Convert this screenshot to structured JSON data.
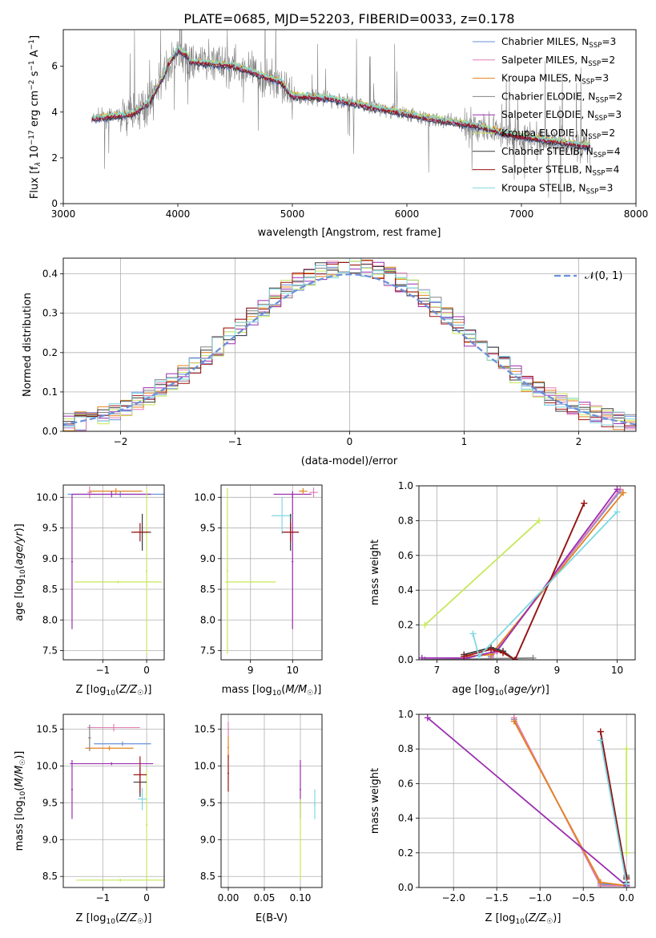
{
  "figure_title": "PLATE=0685, MJD=52203, FIBERID=0033, z=0.178",
  "colors": {
    "Chabrier MILES": "#6a8fd8",
    "Salpeter MILES": "#e07fb3",
    "Kroupa MILES": "#e4821f",
    "Chabrier ELODIE": "#838383",
    "Salpeter ELODIE": "#9b2fb0",
    "Kroupa ELODIE": "#c6e85a",
    "Chabrier STELIB": "#3a3a3a",
    "Salpeter STELIB": "#9e1414",
    "Kroupa STELIB": "#7fd8e2",
    "gaussian": "#6a8fd8"
  },
  "chart_data": [
    {
      "id": "spectrum",
      "type": "line",
      "title": "PLATE=0685, MJD=52203, FIBERID=0033, z=0.178",
      "xlabel": "wavelength [Angstrom, rest frame]",
      "ylabel": "Flux [f_λ 10^-17 erg cm^-2 s^-1 A^-1]",
      "xlim": [
        3000,
        8000
      ],
      "ylim": [
        0,
        7.6
      ],
      "xticks": [
        3000,
        4000,
        5000,
        6000,
        7000,
        8000
      ],
      "yticks": [
        0,
        2,
        4,
        6
      ],
      "grid": false,
      "legend_position": "top-right",
      "legend": [
        {
          "name": "Chabrier MILES",
          "label": "Chabrier MILES, N",
          "sub": "SSP",
          "tail": "=3"
        },
        {
          "name": "Salpeter MILES",
          "label": "Salpeter MILES, N",
          "sub": "SSP",
          "tail": "=2"
        },
        {
          "name": "Kroupa MILES",
          "label": "Kroupa MILES, N",
          "sub": "SSP",
          "tail": "=3"
        },
        {
          "name": "Chabrier ELODIE",
          "label": "Chabrier ELODIE, N",
          "sub": "SSP",
          "tail": "=2"
        },
        {
          "name": "Salpeter ELODIE",
          "label": "Salpeter ELODIE, N",
          "sub": "SSP",
          "tail": "=3"
        },
        {
          "name": "Kroupa ELODIE",
          "label": "Kroupa ELODIE, N",
          "sub": "SSP",
          "tail": "=2"
        },
        {
          "name": "Chabrier STELIB",
          "label": "Chabrier STELIB, N",
          "sub": "SSP",
          "tail": "=4"
        },
        {
          "name": "Salpeter STELIB",
          "label": "Salpeter STELIB, N",
          "sub": "SSP",
          "tail": "=4"
        },
        {
          "name": "Kroupa STELIB",
          "label": "Kroupa STELIB, N",
          "sub": "SSP",
          "tail": "=3"
        }
      ],
      "data_range": [
        3250,
        7600
      ],
      "continuum_anchors": {
        "x": [
          3250,
          3600,
          3750,
          3900,
          4000,
          4100,
          4500,
          4900,
          5000,
          5300,
          5800,
          6200,
          6600,
          6900,
          7300,
          7600
        ],
        "y": [
          3.7,
          3.9,
          4.4,
          5.8,
          6.5,
          6.2,
          6.0,
          5.3,
          4.7,
          4.6,
          4.1,
          3.7,
          3.4,
          3.0,
          2.7,
          2.5
        ]
      }
    },
    {
      "id": "residuals",
      "type": "step",
      "xlabel": "(data-model)/error",
      "ylabel": "Normed distribution",
      "xlim": [
        -2.5,
        2.5
      ],
      "ylim": [
        0,
        0.44
      ],
      "xticks": [
        -2,
        -1,
        0,
        1,
        2
      ],
      "yticks": [
        0.0,
        0.1,
        0.2,
        0.3,
        0.4
      ],
      "grid": true,
      "legend_position": "top-right",
      "reference": {
        "name": "𝒩(0, 1)",
        "mean": 0,
        "std": 1,
        "style": "dashed"
      },
      "bin_width": 0.1
    },
    {
      "id": "age-vs-Z",
      "type": "errorbar",
      "xlabel": "Z [log10(Z/Z☉)]",
      "ylabel": "age [log10(age/yr)]",
      "xlim": [
        -1.9,
        0.4
      ],
      "ylim": [
        7.35,
        10.2
      ],
      "xticks": [
        -1,
        0
      ],
      "yticks": [
        7.5,
        8.0,
        8.5,
        9.0,
        9.5,
        10.0
      ],
      "grid": true,
      "points": [
        {
          "series": "Chabrier MILES",
          "x": -0.6,
          "xerr": 1.2,
          "y": 10.05,
          "yerr": 0.05
        },
        {
          "series": "Salpeter MILES",
          "x": -1.3,
          "xerr": 0.05,
          "y": 10.08,
          "yerr": 0.1
        },
        {
          "series": "Kroupa MILES",
          "x": -0.7,
          "xerr": 0.6,
          "y": 10.1,
          "yerr": 0.05
        },
        {
          "series": "Salpeter ELODIE",
          "x": -0.8,
          "xerr": 0.9,
          "y": 10.05,
          "yerr": 0.05
        },
        {
          "series": "Salpeter ELODIE",
          "x": -1.7,
          "xerr": 0.02,
          "y": 8.95,
          "yerr": 1.1
        },
        {
          "series": "Kroupa ELODIE",
          "x": -0.65,
          "xerr": 1.0,
          "y": 8.62,
          "yerr": 0.02
        },
        {
          "series": "Kroupa ELODIE",
          "x": 0.0,
          "xerr": 0.02,
          "y": 8.8,
          "yerr": 1.35
        },
        {
          "series": "Chabrier STELIB",
          "x": -0.1,
          "xerr": 0.2,
          "y": 9.43,
          "yerr": 0.3
        },
        {
          "series": "Salpeter STELIB",
          "x": -0.15,
          "xerr": 0.2,
          "y": 9.43,
          "yerr": 0.15
        }
      ]
    },
    {
      "id": "age-vs-mass",
      "type": "errorbar",
      "xlabel": "mass [log10(M/M☉)]",
      "xlim": [
        8.3,
        10.7
      ],
      "ylim": [
        7.35,
        10.2
      ],
      "xticks": [
        9,
        10
      ],
      "yticks": [
        7.5,
        8.0,
        8.5,
        9.0,
        9.5,
        10.0
      ],
      "grid": true,
      "points": [
        {
          "series": "Salpeter ELODIE",
          "x": 10.0,
          "xerr": 0.45,
          "y": 10.05,
          "yerr": 0.05
        },
        {
          "series": "Salpeter ELODIE",
          "x": 10.0,
          "xerr": 0.02,
          "y": 8.95,
          "yerr": 1.1
        },
        {
          "series": "Kroupa MILES",
          "x": 10.25,
          "xerr": 0.1,
          "y": 10.1,
          "yerr": 0.05
        },
        {
          "series": "Salpeter MILES",
          "x": 10.5,
          "xerr": 0.1,
          "y": 10.08,
          "yerr": 0.08
        },
        {
          "series": "Kroupa STELIB",
          "x": 9.75,
          "xerr": 0.25,
          "y": 9.7,
          "yerr": 0.3
        },
        {
          "series": "Chabrier STELIB",
          "x": 9.95,
          "xerr": 0.2,
          "y": 9.43,
          "yerr": 0.3
        },
        {
          "series": "Salpeter STELIB",
          "x": 9.95,
          "xerr": 0.2,
          "y": 9.43,
          "yerr": 0.15
        },
        {
          "series": "Kroupa ELODIE",
          "x": 8.45,
          "xerr": 0.02,
          "y": 8.8,
          "yerr": 1.35
        },
        {
          "series": "Kroupa ELODIE",
          "x": 9.0,
          "xerr": 0.6,
          "y": 8.62,
          "yerr": 0.02
        }
      ]
    },
    {
      "id": "weight-vs-age",
      "type": "line",
      "xlabel": "age [log10(age/yr)]",
      "ylabel": "mass weight",
      "xlim": [
        6.7,
        10.3
      ],
      "ylim": [
        0,
        1
      ],
      "xticks": [
        7,
        8,
        9,
        10
      ],
      "yticks": [
        0.0,
        0.2,
        0.4,
        0.6,
        0.8,
        1.0
      ],
      "grid": true,
      "series": [
        {
          "name": "Chabrier MILES",
          "x": [
            7.9,
            10.05
          ],
          "y": [
            0.02,
            0.97
          ]
        },
        {
          "name": "Salpeter MILES",
          "x": [
            7.9,
            10.05
          ],
          "y": [
            0.01,
            0.98
          ]
        },
        {
          "name": "Kroupa MILES",
          "x": [
            7.5,
            7.9,
            10.1
          ],
          "y": [
            0.02,
            0.03,
            0.96
          ]
        },
        {
          "name": "Chabrier ELODIE",
          "x": [
            6.8,
            8.6
          ],
          "y": [
            0.0,
            0.01
          ]
        },
        {
          "name": "Salpeter ELODIE",
          "x": [
            6.75,
            7.5,
            8.0,
            10.0
          ],
          "y": [
            0.01,
            0.01,
            0.05,
            0.98
          ]
        },
        {
          "name": "Kroupa ELODIE",
          "x": [
            6.8,
            8.7
          ],
          "y": [
            0.2,
            0.8
          ]
        },
        {
          "name": "Chabrier STELIB",
          "x": [
            7.45,
            7.9,
            8.1,
            8.3,
            9.45
          ],
          "y": [
            0.03,
            0.07,
            0.05,
            0.0,
            0.9
          ]
        },
        {
          "name": "Salpeter STELIB",
          "x": [
            7.45,
            7.9,
            8.1,
            8.3,
            9.45
          ],
          "y": [
            0.02,
            0.06,
            0.04,
            0.0,
            0.9
          ]
        },
        {
          "name": "Kroupa STELIB",
          "x": [
            7.6,
            7.7,
            10.0
          ],
          "y": [
            0.15,
            0.02,
            0.85
          ]
        }
      ]
    },
    {
      "id": "mass-vs-Z",
      "type": "errorbar",
      "xlabel": "Z [log10(Z/Z☉)]",
      "ylabel": "mass [log10(M/M☉)]",
      "xlim": [
        -1.9,
        0.4
      ],
      "ylim": [
        8.35,
        10.7
      ],
      "xticks": [
        -1,
        0
      ],
      "yticks": [
        8.5,
        9.0,
        9.5,
        10.0,
        10.5
      ],
      "grid": true,
      "points": [
        {
          "series": "Salpeter MILES",
          "x": -0.75,
          "xerr": 0.6,
          "y": 10.52,
          "yerr": 0.05
        },
        {
          "series": "Chabrier MILES",
          "x": -0.55,
          "xerr": 0.65,
          "y": 10.3,
          "yerr": 0.03
        },
        {
          "series": "Kroupa MILES",
          "x": -0.85,
          "xerr": 0.55,
          "y": 10.24,
          "yerr": 0.03
        },
        {
          "series": "Chabrier ELODIE",
          "x": -1.3,
          "xerr": 0.03,
          "y": 10.38,
          "yerr": 0.18
        },
        {
          "series": "Salpeter ELODIE",
          "x": -0.8,
          "xerr": 0.95,
          "y": 10.03,
          "yerr": 0.02
        },
        {
          "series": "Salpeter ELODIE",
          "x": -1.7,
          "xerr": 0.02,
          "y": 9.68,
          "yerr": 0.4
        },
        {
          "series": "Kroupa ELODIE",
          "x": -0.6,
          "xerr": 1.0,
          "y": 8.45,
          "yerr": 0.02
        },
        {
          "series": "Kroupa ELODIE",
          "x": 0.0,
          "xerr": 0.02,
          "y": 9.2,
          "yerr": 0.75
        },
        {
          "series": "Chabrier STELIB",
          "x": -0.15,
          "xerr": 0.15,
          "y": 9.78,
          "yerr": 0.2
        },
        {
          "series": "Salpeter STELIB",
          "x": -0.15,
          "xerr": 0.15,
          "y": 9.88,
          "yerr": 0.25
        },
        {
          "series": "Kroupa STELIB",
          "x": -0.1,
          "xerr": 0.1,
          "y": 9.55,
          "yerr": 0.15
        }
      ]
    },
    {
      "id": "mass-vs-ebv",
      "type": "errorbar",
      "xlabel": "E(B-V)",
      "xlim": [
        -0.01,
        0.13
      ],
      "ylim": [
        8.35,
        10.7
      ],
      "xticks": [
        0.0,
        0.05,
        0.1
      ],
      "yticks": [
        8.5,
        9.0,
        9.5,
        10.0,
        10.5
      ],
      "grid": true,
      "points": [
        {
          "series": "Salpeter MILES",
          "x": 0.0,
          "xerr": 0.001,
          "y": 10.5,
          "yerr": 0.1
        },
        {
          "series": "Kroupa MILES",
          "x": 0.0,
          "xerr": 0.001,
          "y": 10.25,
          "yerr": 0.15
        },
        {
          "series": "Salpeter STELIB",
          "x": 0.0,
          "xerr": 0.001,
          "y": 9.9,
          "yerr": 0.25
        },
        {
          "series": "Salpeter ELODIE",
          "x": 0.1,
          "xerr": 0.001,
          "y": 9.68,
          "yerr": 0.4
        },
        {
          "series": "Kroupa ELODIE",
          "x": 0.1,
          "xerr": 0.001,
          "y": 9.0,
          "yerr": 0.55
        },
        {
          "series": "Kroupa STELIB",
          "x": 0.12,
          "xerr": 0.001,
          "y": 9.48,
          "yerr": 0.2
        }
      ]
    },
    {
      "id": "weight-vs-Z",
      "type": "line",
      "xlabel": "Z [log10(Z/Z☉)]",
      "ylabel": "mass weight",
      "xlim": [
        -2.4,
        0.1
      ],
      "ylim": [
        0,
        1
      ],
      "xticks": [
        -2.0,
        -1.5,
        -1.0,
        -0.5,
        0.0
      ],
      "yticks": [
        0.0,
        0.2,
        0.4,
        0.6,
        0.8,
        1.0
      ],
      "grid": true,
      "series": [
        {
          "name": "Chabrier MILES",
          "x": [
            -1.3,
            -0.3,
            0.0
          ],
          "y": [
            0.97,
            0.02,
            0.01
          ]
        },
        {
          "name": "Salpeter MILES",
          "x": [
            -1.3,
            -0.3,
            0.0
          ],
          "y": [
            0.98,
            0.01,
            0.01
          ]
        },
        {
          "name": "Kroupa MILES",
          "x": [
            -1.3,
            -0.3,
            0.0
          ],
          "y": [
            0.96,
            0.03,
            0.01
          ]
        },
        {
          "name": "Chabrier ELODIE",
          "x": [
            0.0,
            0.0
          ],
          "y": [
            0.0,
            0.07
          ]
        },
        {
          "name": "Salpeter ELODIE",
          "x": [
            -2.3,
            0.0,
            0.0
          ],
          "y": [
            0.98,
            0.01,
            0.05
          ]
        },
        {
          "name": "Kroupa ELODIE",
          "x": [
            0.0,
            0.0
          ],
          "y": [
            0.8,
            0.2
          ]
        },
        {
          "name": "Chabrier STELIB",
          "x": [
            -0.3,
            0.0,
            0.0
          ],
          "y": [
            0.9,
            0.06,
            0.03
          ]
        },
        {
          "name": "Salpeter STELIB",
          "x": [
            -0.3,
            0.0,
            0.0
          ],
          "y": [
            0.9,
            0.05,
            0.02
          ]
        },
        {
          "name": "Kroupa STELIB",
          "x": [
            -0.3,
            0.0
          ],
          "y": [
            0.85,
            0.02
          ]
        }
      ]
    }
  ]
}
